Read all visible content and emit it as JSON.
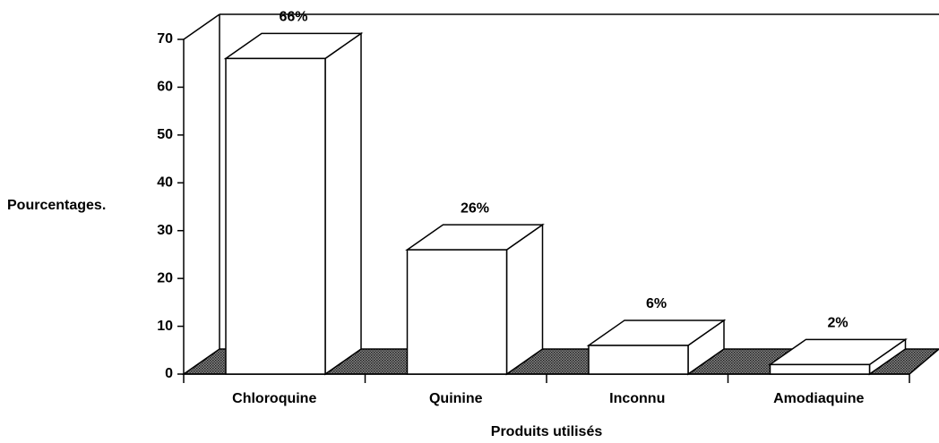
{
  "chart_data": {
    "type": "bar3d",
    "categories": [
      "Chloroquine",
      "Quinine",
      "Inconnu",
      "Amodiaquine"
    ],
    "values": [
      66,
      26,
      6,
      2
    ],
    "value_labels": [
      "66%",
      "26%",
      "6%",
      "2%"
    ],
    "color": "#ffffff",
    "ylabel": "Pourcentages.",
    "xlabel": "Produits utilisés",
    "ylim": [
      0,
      70
    ],
    "yticks": [
      0,
      10,
      20,
      30,
      40,
      50,
      60,
      70
    ]
  }
}
